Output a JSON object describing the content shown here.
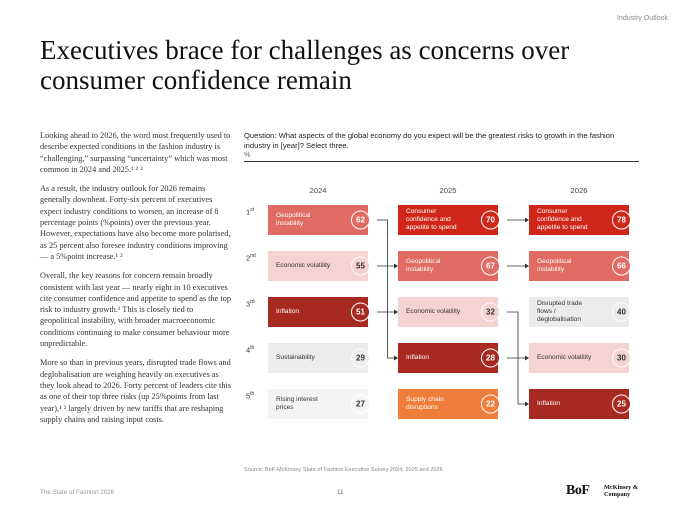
{
  "header": {
    "section": "Industry Outlook"
  },
  "title": "Executives brace for challenges as concerns over consumer confidence remain",
  "body_paragraphs": [
    "Looking ahead to 2026, the word most frequently used to describe expected conditions in the fashion industry is “challenging,” surpassing “uncertainty” which was most common in 2024 and 2025.¹ ² ³",
    "As a result, the industry outlook for 2026 remains generally downbeat. Forty-six percent of executives expect industry conditions to worsen, an increase of 8 percentage points (%points) over the previous year. However, expectations have also become more polarised, as 25 percent also foresee industry conditions improving — a 5%point increase.¹ ²",
    "Overall, the key reasons for concern remain broadly consistent with last year — nearly eight in 10 executives cite consumer confidence and appetite to spend as the top risk to industry growth.¹ This is closely tied to geopolitical instability, with broader macroeconomic conditions continuing to make consumer behaviour more unpredictable.",
    "More so than in previous years, disrupted trade flows and deglobalisation are weighing heavily on executives as they look ahead to 2026. Forty percent of leaders cite this as one of their top three risks (up 25%points from last year),¹ ² largely driven by new tariffs that are reshaping supply chains and raising input costs."
  ],
  "chart": {
    "question": "Question: What aspects of the global economy do you expect will be the greatest risks to growth in the fashion industry in [year]? Select three.",
    "unit": "%",
    "ranks": [
      {
        "num": "1",
        "suffix": "st"
      },
      {
        "num": "2",
        "suffix": "nd"
      },
      {
        "num": "3",
        "suffix": "rd"
      },
      {
        "num": "4",
        "suffix": "th"
      },
      {
        "num": "5",
        "suffix": "th"
      }
    ],
    "source": "Source: BoF-McKinsey State of Fashion Executive Survey 2024, 2025 and 2026"
  },
  "chart_data": {
    "type": "table",
    "title": "Risks to growth in the fashion industry",
    "unit": "%",
    "columns": [
      "2024",
      "2025",
      "2026"
    ],
    "rows": {
      "2024": [
        {
          "label": "Geopolitical instability",
          "value": 62,
          "color": "#e06b62",
          "text_color": "#ffffff"
        },
        {
          "label": "Economic volatility",
          "value": 55,
          "color": "#f5d3d1",
          "text_color": "#333333"
        },
        {
          "label": "Inflation",
          "value": 51,
          "color": "#a62a1f",
          "text_color": "#ffffff"
        },
        {
          "label": "Sustainability",
          "value": 29,
          "color": "#ececec",
          "text_color": "#333333"
        },
        {
          "label": "Rising interest prices",
          "value": 27,
          "color": "#f4f4f4",
          "text_color": "#333333"
        }
      ],
      "2025": [
        {
          "label": "Consumer confidence and appetite to spend",
          "value": 70,
          "color": "#d0271b",
          "text_color": "#ffffff"
        },
        {
          "label": "Geopolitical instability",
          "value": 67,
          "color": "#e06b62",
          "text_color": "#ffffff"
        },
        {
          "label": "Economic volatility",
          "value": 32,
          "color": "#f5d3d1",
          "text_color": "#333333"
        },
        {
          "label": "Inflation",
          "value": 28,
          "color": "#a62a1f",
          "text_color": "#ffffff"
        },
        {
          "label": "Supply chain disruptions",
          "value": 22,
          "color": "#ee7d3a",
          "text_color": "#ffffff"
        }
      ],
      "2026": [
        {
          "label": "Consumer confidence and appetite to spend",
          "value": 78,
          "color": "#d0271b",
          "text_color": "#ffffff"
        },
        {
          "label": "Geopolitical instability",
          "value": 66,
          "color": "#e06b62",
          "text_color": "#ffffff"
        },
        {
          "label": "Disrupted trade flows / deglobalisation",
          "value": 40,
          "color": "#ececec",
          "text_color": "#333333"
        },
        {
          "label": "Economic volatility",
          "value": 30,
          "color": "#f5d3d1",
          "text_color": "#333333"
        },
        {
          "label": "Inflation",
          "value": 25,
          "color": "#a62a1f",
          "text_color": "#ffffff"
        }
      ]
    }
  },
  "footer": {
    "publication": "The State of Fashion 2026",
    "page_number": "11",
    "logo_bof": "BoF",
    "logo_mckinsey": "McKinsey & Company"
  }
}
